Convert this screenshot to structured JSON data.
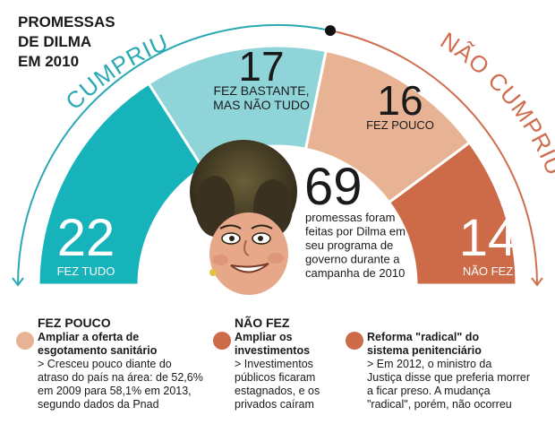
{
  "title": [
    "PROMESSAS",
    "DE DILMA",
    "EM 2010"
  ],
  "arc_labels": {
    "left": "CUMPRIU",
    "right": "NÃO CUMPRIU"
  },
  "colors": {
    "fez_tudo": "#16b3bb",
    "fez_bastante": "#8fd4d8",
    "fez_pouco": "#e8b294",
    "nao_fez": "#cd6a48",
    "arc_left": "#2aa9b3",
    "arc_right": "#cf6e4f",
    "text_dark": "#1a1a1a"
  },
  "chart_data": {
    "type": "pie",
    "shape": "semicircle",
    "title": "PROMESSAS DE DILMA EM 2010",
    "slices": [
      {
        "label": "FEZ TUDO",
        "value": 22,
        "color": "#16b3bb",
        "group": "CUMPRIU"
      },
      {
        "label": "FEZ BASTANTE, MAS NÃO TUDO",
        "value": 17,
        "color": "#8fd4d8",
        "group": "CUMPRIU"
      },
      {
        "label": "FEZ POUCO",
        "value": 16,
        "color": "#e8b294",
        "group": "NÃO CUMPRIU"
      },
      {
        "label": "NÃO FEZ",
        "value": 14,
        "color": "#cd6a48",
        "group": "NÃO CUMPRIU"
      }
    ],
    "slice_label_lines": [
      [
        "FEZ TUDO"
      ],
      [
        "FEZ BASTANTE,",
        "MAS NÃO TUDO"
      ],
      [
        "FEZ POUCO"
      ],
      [
        "NÃO FEZ"
      ]
    ],
    "total": {
      "value": 69,
      "text": [
        "promessas foram",
        "feitas por Dilma em",
        "seu programa de",
        "governo durante a",
        "campanha de 2010"
      ]
    }
  },
  "portrait": {
    "icon": "dilma-caricature-icon"
  },
  "legend": [
    {
      "category": "FEZ POUCO",
      "color": "#e8b294",
      "headline": [
        "Ampliar a oferta de",
        "esgotamento sanitário"
      ],
      "detail": [
        "> Cresceu pouco diante do",
        "atraso do país na área: de 52,6%",
        "em 2009 para 58,1% em 2013,",
        "segundo dados da Pnad"
      ]
    },
    {
      "category": "NÃO FEZ",
      "color": "#cd6a48",
      "headline": [
        "Ampliar os",
        "investimentos"
      ],
      "detail": [
        "> Investimentos",
        "públicos ficaram",
        "estagnados, e os",
        "privados caíram"
      ]
    },
    {
      "category": "",
      "color": "#cd6a48",
      "headline": [
        "Reforma \"radical\" do",
        "sistema penitenciário"
      ],
      "detail": [
        "> Em 2012, o ministro da",
        "Justiça disse que preferia morrer",
        "a ficar preso. A mudança",
        "\"radical\", porém, não ocorreu"
      ]
    }
  ]
}
